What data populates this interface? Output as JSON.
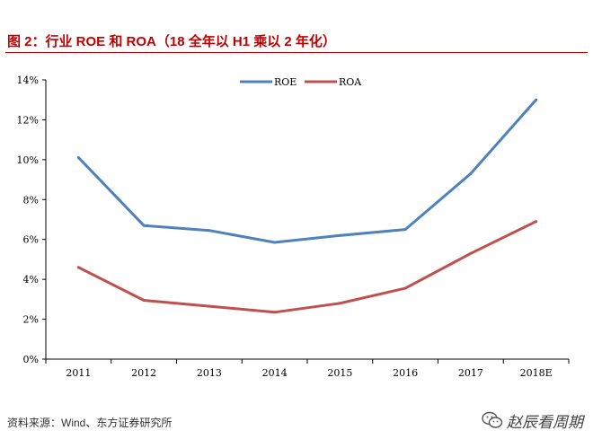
{
  "title": "图 2：行业 ROE 和 ROA（18 全年以 H1 乘以 2 年化）",
  "source": "资料来源：Wind、东方证券研究所",
  "watermark": "赵辰看周期",
  "chart_data": {
    "type": "line",
    "categories": [
      "2011",
      "2012",
      "2013",
      "2014",
      "2015",
      "2016",
      "2017",
      "2018E"
    ],
    "series": [
      {
        "name": "ROE",
        "color": "#4f81bd",
        "values": [
          10.1,
          6.7,
          6.45,
          5.85,
          6.2,
          6.5,
          9.3,
          13.0
        ]
      },
      {
        "name": "ROA",
        "color": "#c0504d",
        "values": [
          4.6,
          2.95,
          2.65,
          2.35,
          2.8,
          3.55,
          5.3,
          6.9
        ]
      }
    ],
    "yticks": [
      "0%",
      "2%",
      "4%",
      "6%",
      "8%",
      "10%",
      "12%",
      "14%"
    ],
    "ylim": [
      0,
      14
    ],
    "legend_position": "top-center",
    "grid": false
  }
}
